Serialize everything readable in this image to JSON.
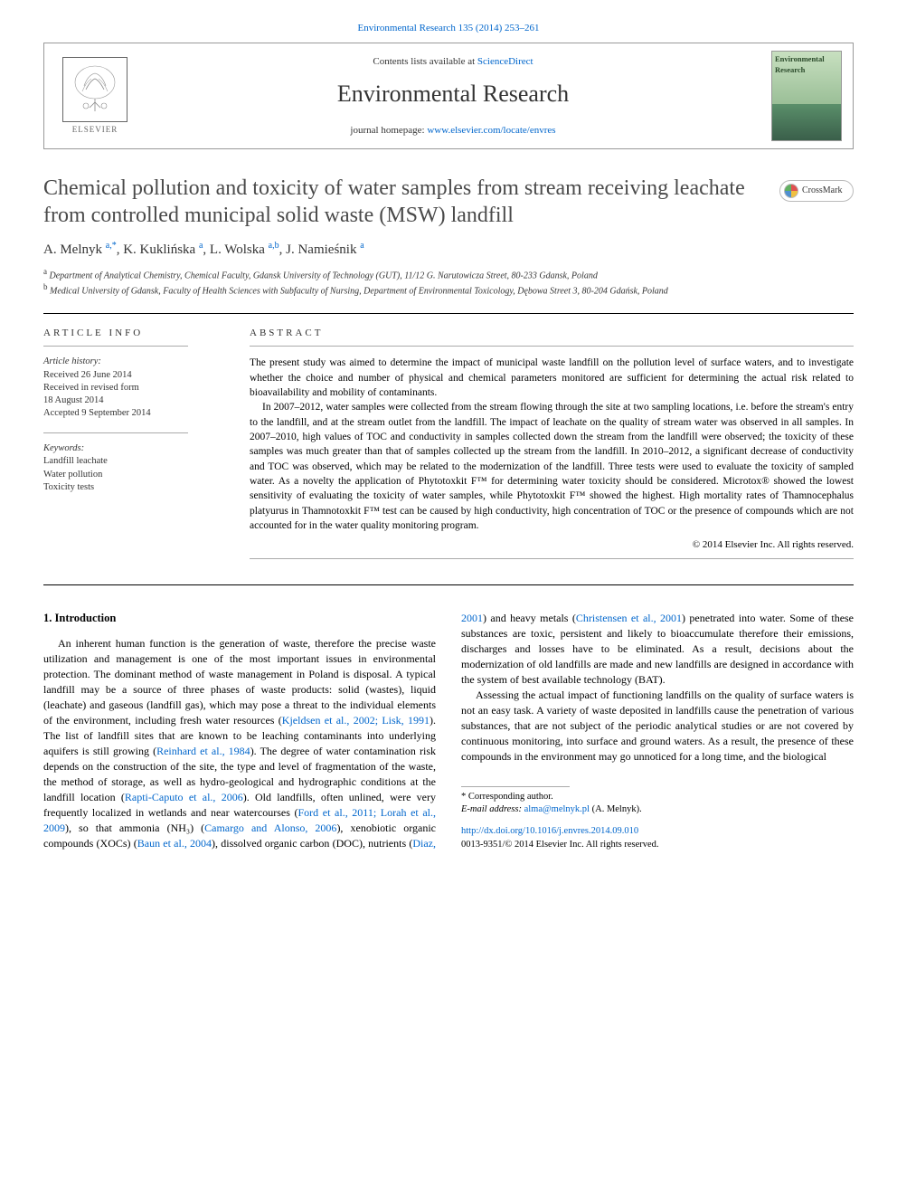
{
  "top_citation": "Environmental Research 135 (2014) 253–261",
  "header": {
    "contents_prefix": "Contents lists available at ",
    "contents_link": "ScienceDirect",
    "journal_title": "Environmental Research",
    "homepage_prefix": "journal homepage: ",
    "homepage_link": "www.elsevier.com/locate/envres",
    "elsevier_label": "ELSEVIER",
    "cover_title": "Environmental Research"
  },
  "crossmark_label": "CrossMark",
  "title": "Chemical pollution and toxicity of water samples from stream receiving leachate from controlled municipal solid waste (MSW) landfill",
  "authors_html": "A. Melnyk <sup>a,*</sup>, K. Kuklińska <sup>a</sup>, L. Wolska <sup>a,b</sup>, J. Namieśnik <sup>a</sup>",
  "affiliations": {
    "a": "Department of Analytical Chemistry, Chemical Faculty, Gdansk University of Technology (GUT), 11/12 G. Narutowicza Street, 80-233 Gdansk, Poland",
    "b": "Medical University of Gdansk, Faculty of Health Sciences with Subfaculty of Nursing, Department of Environmental Toxicology, Dębowa Street 3, 80-204 Gdańsk, Poland"
  },
  "labels": {
    "article_info": "ARTICLE INFO",
    "abstract": "ABSTRACT"
  },
  "article_info": {
    "history_label": "Article history:",
    "received": "Received 26 June 2014",
    "revised_1": "Received in revised form",
    "revised_2": "18 August 2014",
    "accepted": "Accepted 9 September 2014",
    "keywords_label": "Keywords:",
    "kw1": "Landfill leachate",
    "kw2": "Water pollution",
    "kw3": "Toxicity tests"
  },
  "abstract": {
    "p1": "The present study was aimed to determine the impact of municipal waste landfill on the pollution level of surface waters, and to investigate whether the choice and number of physical and chemical parameters monitored are sufficient for determining the actual risk related to bioavailability and mobility of contaminants.",
    "p2": "In 2007–2012, water samples were collected from the stream flowing through the site at two sampling locations, i.e. before the stream's entry to the landfill, and at the stream outlet from the landfill. The impact of leachate on the quality of stream water was observed in all samples. In 2007–2010, high values of TOC and conductivity in samples collected down the stream from the landfill were observed; the toxicity of these samples was much greater than that of samples collected up the stream from the landfill. In 2010–2012, a significant decrease of conductivity and TOC was observed, which may be related to the modernization of the landfill. Three tests were used to evaluate the toxicity of sampled water. As a novelty the application of Phytotoxkit F™ for determining water toxicity should be considered. Microtox® showed the lowest sensitivity of evaluating the toxicity of water samples, while Phytotoxkit F™ showed the highest. High mortality rates of Thamnocephalus platyurus in Thamnotoxkit F™ test can be caused by high conductivity, high concentration of TOC or the presence of compounds which are not accounted for in the water quality monitoring program.",
    "copyright": "© 2014 Elsevier Inc. All rights reserved."
  },
  "intro": {
    "heading": "1.  Introduction",
    "p1_a": "An inherent human function is the generation of waste, therefore the precise waste utilization and management is one of the most important issues in environmental protection. The dominant method of waste management in Poland is disposal. A typical landfill may be a source of three phases of waste products: solid (wastes), liquid (leachate) and gaseous (landfill gas), which may pose a threat to the individual elements of the environment, including fresh water resources (",
    "p1_l1": "Kjeldsen et al., 2002; Lisk, 1991",
    "p1_b": "). The list of landfill sites that are known to be leaching contaminants into underlying aquifers is still growing (",
    "p1_l2": "Reinhard et al., 1984",
    "p1_c": "). The degree of water contamination risk depends on the construction of the site, the type and level of fragmentation of the waste, the method of storage, as well as hydro-geological and hydrographic conditions at the landfill location (",
    "p1_l3": "Rapti-Caputo et al., 2006",
    "p1_d": "). Old landfills, often unlined, were very frequently localized in wetlands and near watercourses (",
    "p1_l4": "Ford et al., 2011; Lorah et al., 2009",
    "p1_e": "), so that ammonia (NH₃) (",
    "p1_l5": "Camargo and Alonso, 2006",
    "p1_f": "), xenobiotic organic compounds (XOCs) (",
    "p1_l6": "Baun et al., 2004",
    "p1_g": "), dissolved organic carbon (DOC), nutrients (",
    "p1_l7": "Diaz, 2001",
    "p1_h": ") and heavy metals (",
    "p1_l8": "Christensen et al., 2001",
    "p1_i": ") penetrated into water. Some of these substances are toxic, persistent and likely to bioaccumulate therefore their emissions, discharges and losses have to be eliminated. As a result, decisions about the modernization of old landfills are made and new landfills are designed in accordance with the system of best available technology (BAT).",
    "p2": "Assessing the actual impact of functioning landfills on the quality of surface waters is not an easy task. A variety of waste deposited in landfills cause the penetration of various substances, that are not subject of the periodic analytical studies or are not covered by continuous monitoring, into surface and ground waters. As a result, the presence of these compounds in the environment may go unnoticed for a long time, and the biological"
  },
  "footnotes": {
    "corr": "* Corresponding author.",
    "email_label": "E-mail address: ",
    "email": "alma@melnyk.pl",
    "email_suffix": " (A. Melnyk)."
  },
  "doi": {
    "link": "http://dx.doi.org/10.1016/j.envres.2014.09.010",
    "issn": "0013-9351/© 2014 Elsevier Inc. All rights reserved."
  },
  "colors": {
    "link": "#0066cc",
    "text": "#000000",
    "muted": "#333333",
    "border": "#999999"
  }
}
